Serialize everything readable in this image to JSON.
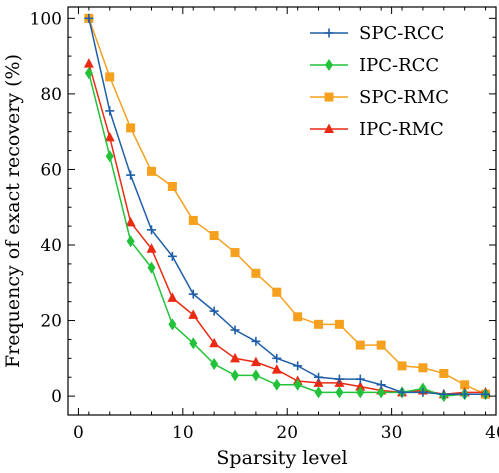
{
  "chart_data": {
    "type": "line",
    "title": "",
    "xlabel": "Sparsity level",
    "ylabel": "Frequency of exact recovery (%)",
    "xlim": [
      -1,
      40
    ],
    "ylim": [
      -5,
      103
    ],
    "xticks": [
      0,
      10,
      20,
      30,
      40
    ],
    "yticks": [
      0,
      20,
      40,
      60,
      80,
      100
    ],
    "grid": false,
    "legend_position": "top-right",
    "x": [
      1,
      3,
      5,
      7,
      9,
      11,
      13,
      15,
      17,
      19,
      21,
      23,
      25,
      27,
      29,
      31,
      33,
      35,
      37,
      39
    ],
    "series": [
      {
        "name": "SPC-RCC",
        "color": "#1f5fa8",
        "marker": "plus",
        "values": [
          100,
          75.5,
          58.5,
          44,
          37,
          27,
          22.5,
          17.5,
          14.5,
          10,
          8,
          5,
          4.5,
          4.5,
          3,
          1,
          1,
          0.5,
          0.5,
          0.5
        ]
      },
      {
        "name": "IPC-RCC",
        "color": "#22c23a",
        "marker": "diamond",
        "values": [
          85.5,
          63.5,
          41,
          34,
          19,
          14,
          8.5,
          5.5,
          5.5,
          3,
          3,
          1,
          1,
          1,
          1,
          1,
          2,
          0,
          0.5,
          0.5
        ]
      },
      {
        "name": "SPC-RMC",
        "color": "#f5a01e",
        "marker": "square",
        "values": [
          100,
          84.5,
          71,
          59.5,
          55.5,
          46.5,
          42.5,
          38,
          32.5,
          27.5,
          21,
          19,
          19,
          13.5,
          13.5,
          8,
          7.5,
          6,
          3,
          0.5
        ]
      },
      {
        "name": "IPC-RMC",
        "color": "#ea2a12",
        "marker": "triangle",
        "values": [
          88,
          68.5,
          46,
          39,
          26,
          21.5,
          14,
          10,
          9,
          7,
          4,
          3.5,
          3.5,
          2.5,
          1.5,
          1,
          1.5,
          0.5,
          1,
          1
        ]
      }
    ]
  }
}
